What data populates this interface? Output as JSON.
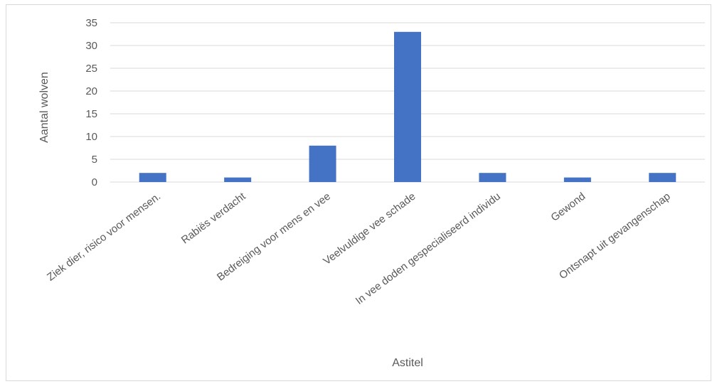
{
  "chart_data": {
    "type": "bar",
    "categories": [
      "Ziek dier, risico voor mensen.",
      "Rabiës verdacht",
      "Bedreiging voor mens en vee",
      "Veelvuldige vee schade",
      "In vee doden gespecialiseerd individu",
      "Gewond",
      "Ontsnapt uit gevangenschap"
    ],
    "values": [
      2,
      1,
      8,
      33,
      2,
      1,
      2
    ],
    "title": "",
    "xlabel": "Astitel",
    "ylabel": "Aantal wolven",
    "ylim": [
      0,
      35
    ],
    "yticks": [
      0,
      5,
      10,
      15,
      20,
      25,
      30,
      35
    ],
    "grid": true,
    "legend": "none",
    "colors": {
      "bar": "#4472c4",
      "grid": "#d9d9d9",
      "text": "#595959"
    }
  }
}
